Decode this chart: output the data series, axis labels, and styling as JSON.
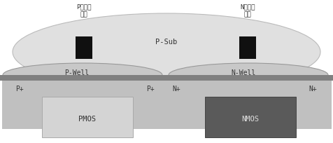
{
  "bg_color": "#ffffff",
  "psub_color": "#e0e0e0",
  "psub_edge": "#bbbbbb",
  "well_color": "#c8c8c8",
  "well_edge": "#999999",
  "bar_color": "#808080",
  "diff_color": "#c0c0c0",
  "pmos_fill": "#d4d4d4",
  "pmos_edge": "#aaaaaa",
  "nmos_fill": "#5a5a5a",
  "nmos_edge": "#444444",
  "contact_color": "#101010",
  "text_color": "#333333",
  "nmos_text_color": "#dddddd",
  "psub_label": "P-Sub",
  "pwell_label": "P-Well",
  "nwell_label": "N-Well",
  "p_bias_label": "P管正向\n偏压",
  "n_bias_label": "N管正向\n偏压",
  "pmos_label": "PMOS",
  "nmos_label": "NMOS",
  "pp_left": "P+",
  "pp_right": "P+",
  "np_left": "N+",
  "np_right": "N+"
}
